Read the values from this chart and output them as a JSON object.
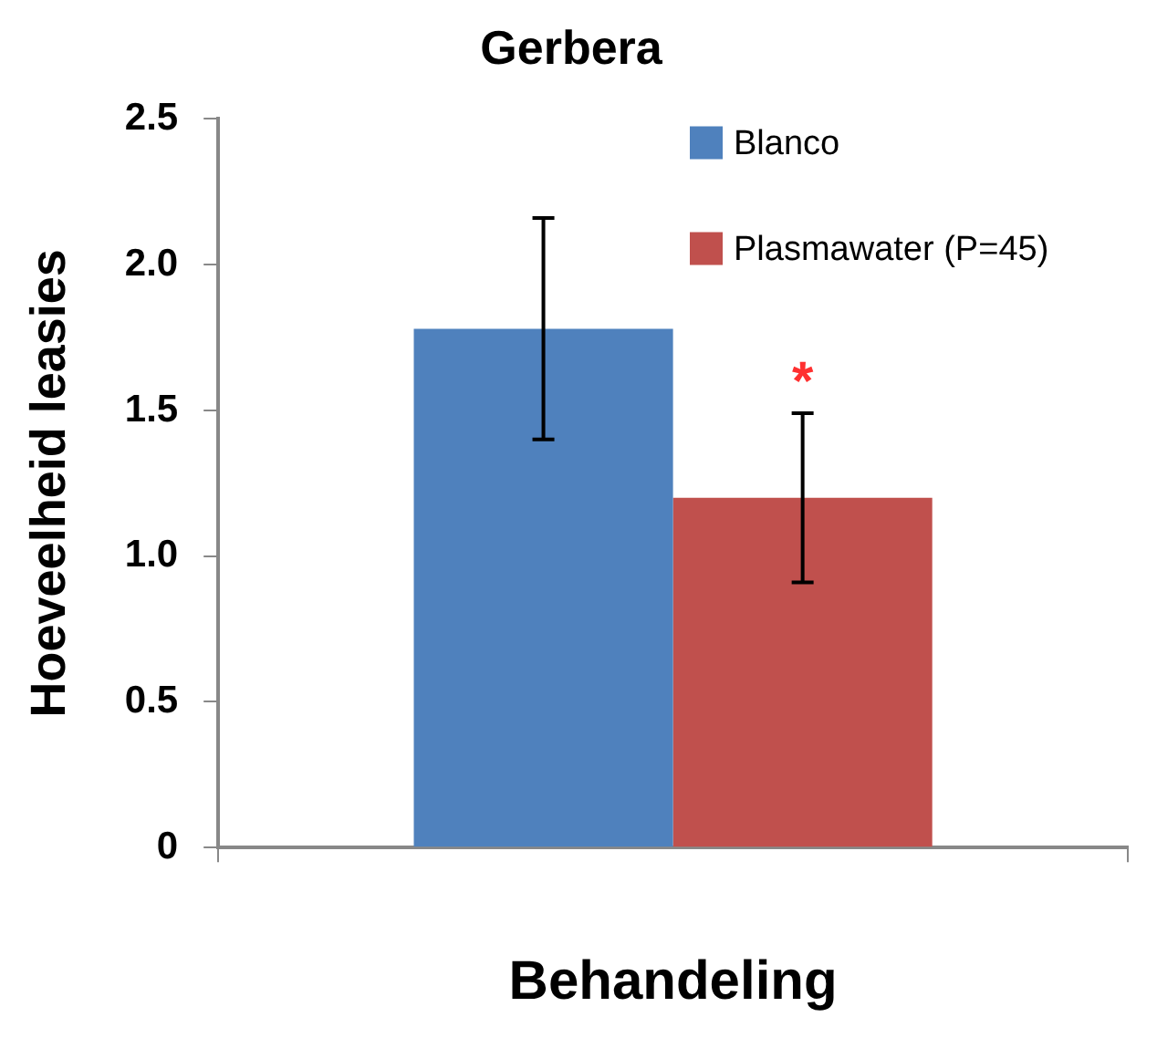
{
  "chart_data": {
    "type": "bar",
    "title": "Gerbera",
    "xlabel": "Behandeling",
    "ylabel": "Hoeveelheid leasies",
    "categories": [
      null
    ],
    "series": [
      {
        "name": "Blanco",
        "color": "#4f81bd",
        "values": [
          1.78
        ],
        "errors": [
          [
            1.4,
            2.16
          ]
        ]
      },
      {
        "name": "Plasmawater (P=45)",
        "color": "#c0504d",
        "values": [
          1.2
        ],
        "errors": [
          [
            0.91,
            1.49
          ]
        ]
      }
    ],
    "ylim": [
      0,
      2.5
    ],
    "yticks": [
      {
        "value": 0,
        "label": "0"
      },
      {
        "value": 0.5,
        "label": "0.5"
      },
      {
        "value": 1,
        "label": "1.0"
      },
      {
        "value": 1.5,
        "label": "1.5"
      },
      {
        "value": 2,
        "label": "2.0"
      },
      {
        "value": 2.5,
        "label": "2.5"
      }
    ],
    "grid": false,
    "legend": "top right",
    "annotations": [
      "*"
    ]
  }
}
